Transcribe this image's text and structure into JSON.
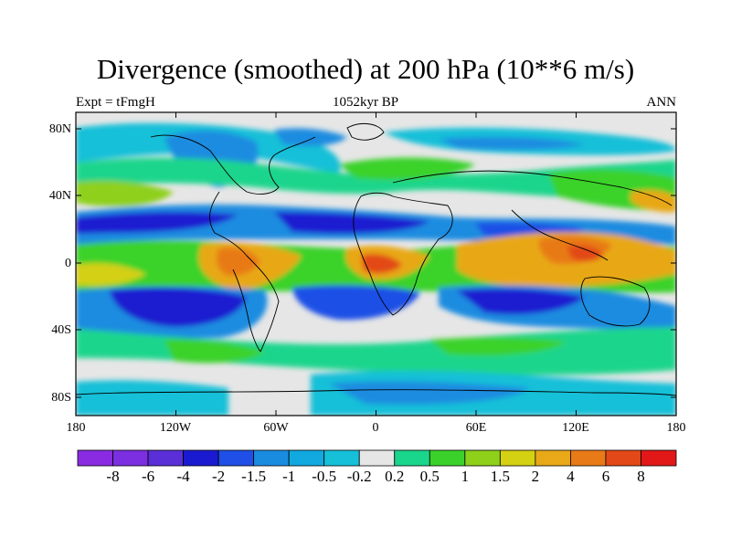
{
  "title": "Divergence (smoothed) at 200 hPa (10**6 m/s)",
  "subtitle_left": "Expt = tFmgH",
  "subtitle_center": "1052kyr BP",
  "subtitle_right": "ANN",
  "lat_ticks": [
    "80N",
    "40N",
    "0",
    "40S",
    "80S"
  ],
  "lon_ticks": [
    "180",
    "120W",
    "60W",
    "0",
    "60E",
    "120E",
    "180"
  ],
  "colorbar": {
    "labels": [
      "-8",
      "-6",
      "-4",
      "-2",
      "-1.5",
      "-1",
      "-0.5",
      "-0.2",
      "0.2",
      "0.5",
      "1",
      "1.5",
      "2",
      "4",
      "6",
      "8"
    ],
    "colors": [
      "#8a2be2",
      "#7b2fe0",
      "#5a2fd8",
      "#1a1ad0",
      "#1f4fe6",
      "#1a8ce0",
      "#11a8e0",
      "#15c0d8",
      "#e6e6e6",
      "#1ad58c",
      "#3ad22a",
      "#8ed01a",
      "#d4d012",
      "#e8a818",
      "#e87a18",
      "#e24818",
      "#e21818"
    ]
  },
  "colors": {
    "land_line": "#000000",
    "neutral": "#e6e6e6"
  }
}
